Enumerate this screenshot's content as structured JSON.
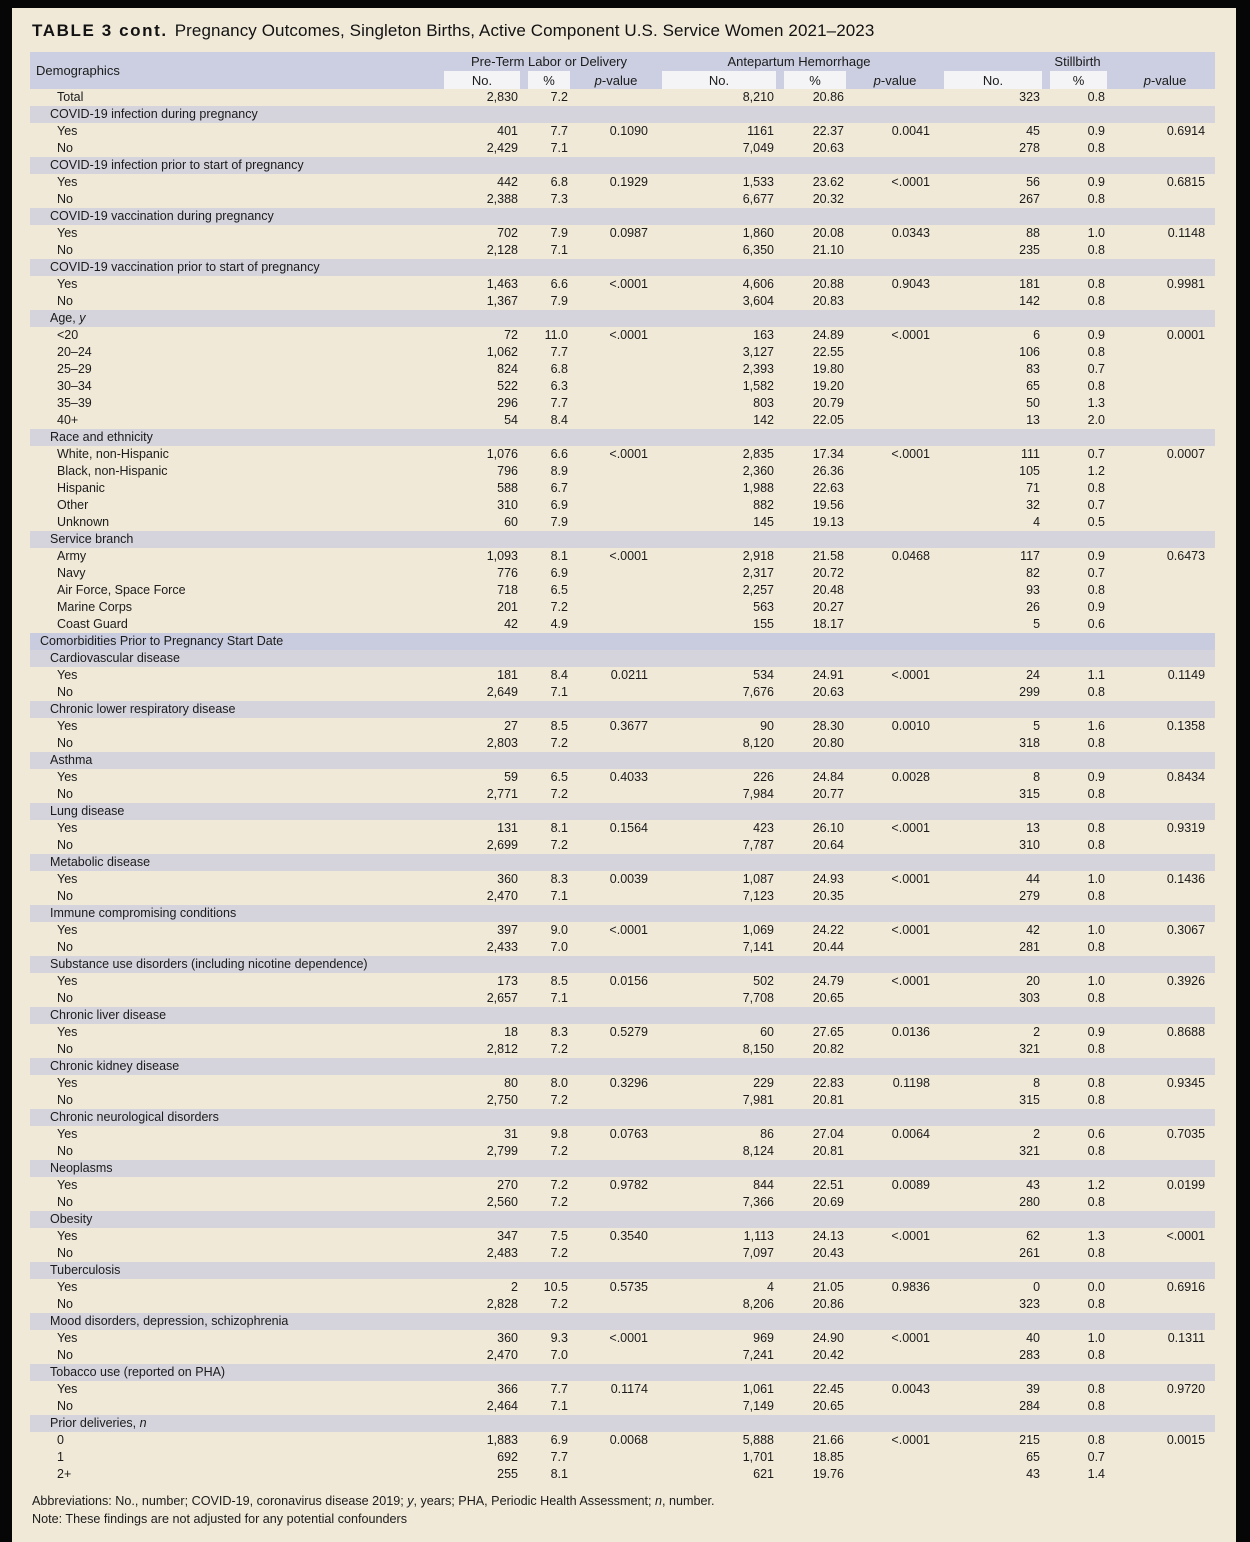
{
  "title": {
    "label": "TABLE 3 cont.",
    "text": "Pregnancy Outcomes, Singleton Births, Active Component U.S. Service Women 2021–2023"
  },
  "colors": {
    "page_background": "#060606",
    "paper_background": "#f0e9d8",
    "header_band": "#cbcfe1",
    "subheader_box": "#f4f3f6",
    "section_band": "#d5d4dc",
    "major_section_band": "#c9ccde",
    "text": "#1b1b1b"
  },
  "table": {
    "demographics_header": "Demographics",
    "groups": [
      {
        "label": "Pre-Term Labor or Delivery"
      },
      {
        "label": "Antepartum Hemorrhage"
      },
      {
        "label": "Stillbirth"
      }
    ],
    "subheaders": {
      "no": "No.",
      "pct": "%",
      "p_italic": "p",
      "p_rest": "-value"
    },
    "rows": [
      {
        "type": "data",
        "label": "Total",
        "cells": [
          "2,830",
          "7.2",
          "",
          "8,210",
          "20.86",
          "",
          "323",
          "0.8",
          ""
        ]
      },
      {
        "type": "section",
        "label": "COVID-19 infection during pregnancy"
      },
      {
        "type": "data",
        "label": "Yes",
        "cells": [
          "401",
          "7.7",
          "0.1090",
          "1161",
          "22.37",
          "0.0041",
          "45",
          "0.9",
          "0.6914"
        ]
      },
      {
        "type": "data",
        "label": "No",
        "cells": [
          "2,429",
          "7.1",
          "",
          "7,049",
          "20.63",
          "",
          "278",
          "0.8",
          ""
        ]
      },
      {
        "type": "section",
        "label": "COVID-19 infection prior to start of pregnancy"
      },
      {
        "type": "data",
        "label": "Yes",
        "cells": [
          "442",
          "6.8",
          "0.1929",
          "1,533",
          "23.62",
          "<.0001",
          "56",
          "0.9",
          "0.6815"
        ]
      },
      {
        "type": "data",
        "label": "No",
        "cells": [
          "2,388",
          "7.3",
          "",
          "6,677",
          "20.32",
          "",
          "267",
          "0.8",
          ""
        ]
      },
      {
        "type": "section",
        "label": "COVID-19 vaccination during pregnancy"
      },
      {
        "type": "data",
        "label": "Yes",
        "cells": [
          "702",
          "7.9",
          "0.0987",
          "1,860",
          "20.08",
          "0.0343",
          "88",
          "1.0",
          "0.1148"
        ]
      },
      {
        "type": "data",
        "label": "No",
        "cells": [
          "2,128",
          "7.1",
          "",
          "6,350",
          "21.10",
          "",
          "235",
          "0.8",
          ""
        ]
      },
      {
        "type": "section",
        "label": "COVID-19 vaccination prior to start of pregnancy"
      },
      {
        "type": "data",
        "label": "Yes",
        "cells": [
          "1,463",
          "6.6",
          "<.0001",
          "4,606",
          "20.88",
          "0.9043",
          "181",
          "0.8",
          "0.9981"
        ]
      },
      {
        "type": "data",
        "label": "No",
        "cells": [
          "1,367",
          "7.9",
          "",
          "3,604",
          "20.83",
          "",
          "142",
          "0.8",
          ""
        ]
      },
      {
        "type": "section",
        "label": "Age, ",
        "label_italic": "y"
      },
      {
        "type": "data",
        "label": "<20",
        "cells": [
          "72",
          "11.0",
          "<.0001",
          "163",
          "24.89",
          "<.0001",
          "6",
          "0.9",
          "0.0001"
        ]
      },
      {
        "type": "data",
        "label": "20–24",
        "cells": [
          "1,062",
          "7.7",
          "",
          "3,127",
          "22.55",
          "",
          "106",
          "0.8",
          ""
        ]
      },
      {
        "type": "data",
        "label": "25–29",
        "cells": [
          "824",
          "6.8",
          "",
          "2,393",
          "19.80",
          "",
          "83",
          "0.7",
          ""
        ]
      },
      {
        "type": "data",
        "label": "30–34",
        "cells": [
          "522",
          "6.3",
          "",
          "1,582",
          "19.20",
          "",
          "65",
          "0.8",
          ""
        ]
      },
      {
        "type": "data",
        "label": "35–39",
        "cells": [
          "296",
          "7.7",
          "",
          "803",
          "20.79",
          "",
          "50",
          "1.3",
          ""
        ]
      },
      {
        "type": "data",
        "label": "40+",
        "cells": [
          "54",
          "8.4",
          "",
          "142",
          "22.05",
          "",
          "13",
          "2.0",
          ""
        ]
      },
      {
        "type": "section",
        "label": "Race and ethnicity"
      },
      {
        "type": "data",
        "label": "White, non-Hispanic",
        "cells": [
          "1,076",
          "6.6",
          "<.0001",
          "2,835",
          "17.34",
          "<.0001",
          "111",
          "0.7",
          "0.0007"
        ]
      },
      {
        "type": "data",
        "label": "Black, non-Hispanic",
        "cells": [
          "796",
          "8.9",
          "",
          "2,360",
          "26.36",
          "",
          "105",
          "1.2",
          ""
        ]
      },
      {
        "type": "data",
        "label": "Hispanic",
        "cells": [
          "588",
          "6.7",
          "",
          "1,988",
          "22.63",
          "",
          "71",
          "0.8",
          ""
        ]
      },
      {
        "type": "data",
        "label": "Other",
        "cells": [
          "310",
          "6.9",
          "",
          "882",
          "19.56",
          "",
          "32",
          "0.7",
          ""
        ]
      },
      {
        "type": "data",
        "label": "Unknown",
        "cells": [
          "60",
          "7.9",
          "",
          "145",
          "19.13",
          "",
          "4",
          "0.5",
          ""
        ]
      },
      {
        "type": "section",
        "label": "Service branch"
      },
      {
        "type": "data",
        "label": "Army",
        "cells": [
          "1,093",
          "8.1",
          "<.0001",
          "2,918",
          "21.58",
          "0.0468",
          "117",
          "0.9",
          "0.6473"
        ]
      },
      {
        "type": "data",
        "label": "Navy",
        "cells": [
          "776",
          "6.9",
          "",
          "2,317",
          "20.72",
          "",
          "82",
          "0.7",
          ""
        ]
      },
      {
        "type": "data",
        "label": "Air Force, Space Force",
        "cells": [
          "718",
          "6.5",
          "",
          "2,257",
          "20.48",
          "",
          "93",
          "0.8",
          ""
        ]
      },
      {
        "type": "data",
        "label": "Marine Corps",
        "cells": [
          "201",
          "7.2",
          "",
          "563",
          "20.27",
          "",
          "26",
          "0.9",
          ""
        ]
      },
      {
        "type": "data",
        "label": "Coast Guard",
        "cells": [
          "42",
          "4.9",
          "",
          "155",
          "18.17",
          "",
          "5",
          "0.6",
          ""
        ]
      },
      {
        "type": "major",
        "label": "Comorbidities Prior to Pregnancy Start Date"
      },
      {
        "type": "section",
        "label": "Cardiovascular disease"
      },
      {
        "type": "data",
        "label": "Yes",
        "cells": [
          "181",
          "8.4",
          "0.0211",
          "534",
          "24.91",
          "<.0001",
          "24",
          "1.1",
          "0.1149"
        ]
      },
      {
        "type": "data",
        "label": "No",
        "cells": [
          "2,649",
          "7.1",
          "",
          "7,676",
          "20.63",
          "",
          "299",
          "0.8",
          ""
        ]
      },
      {
        "type": "section",
        "label": "Chronic lower respiratory disease"
      },
      {
        "type": "data",
        "label": "Yes",
        "cells": [
          "27",
          "8.5",
          "0.3677",
          "90",
          "28.30",
          "0.0010",
          "5",
          "1.6",
          "0.1358"
        ]
      },
      {
        "type": "data",
        "label": "No",
        "cells": [
          "2,803",
          "7.2",
          "",
          "8,120",
          "20.80",
          "",
          "318",
          "0.8",
          ""
        ]
      },
      {
        "type": "section",
        "label": "Asthma"
      },
      {
        "type": "data",
        "label": "Yes",
        "cells": [
          "59",
          "6.5",
          "0.4033",
          "226",
          "24.84",
          "0.0028",
          "8",
          "0.9",
          "0.8434"
        ]
      },
      {
        "type": "data",
        "label": "No",
        "cells": [
          "2,771",
          "7.2",
          "",
          "7,984",
          "20.77",
          "",
          "315",
          "0.8",
          ""
        ]
      },
      {
        "type": "section",
        "label": "Lung disease"
      },
      {
        "type": "data",
        "label": "Yes",
        "cells": [
          "131",
          "8.1",
          "0.1564",
          "423",
          "26.10",
          "<.0001",
          "13",
          "0.8",
          "0.9319"
        ]
      },
      {
        "type": "data",
        "label": "No",
        "cells": [
          "2,699",
          "7.2",
          "",
          "7,787",
          "20.64",
          "",
          "310",
          "0.8",
          ""
        ]
      },
      {
        "type": "section",
        "label": "Metabolic disease"
      },
      {
        "type": "data",
        "label": "Yes",
        "cells": [
          "360",
          "8.3",
          "0.0039",
          "1,087",
          "24.93",
          "<.0001",
          "44",
          "1.0",
          "0.1436"
        ]
      },
      {
        "type": "data",
        "label": "No",
        "cells": [
          "2,470",
          "7.1",
          "",
          "7,123",
          "20.35",
          "",
          "279",
          "0.8",
          ""
        ]
      },
      {
        "type": "section",
        "label": "Immune compromising conditions"
      },
      {
        "type": "data",
        "label": "Yes",
        "cells": [
          "397",
          "9.0",
          "<.0001",
          "1,069",
          "24.22",
          "<.0001",
          "42",
          "1.0",
          "0.3067"
        ]
      },
      {
        "type": "data",
        "label": "No",
        "cells": [
          "2,433",
          "7.0",
          "",
          "7,141",
          "20.44",
          "",
          "281",
          "0.8",
          ""
        ]
      },
      {
        "type": "section",
        "label": "Substance use disorders (including nicotine dependence)"
      },
      {
        "type": "data",
        "label": "Yes",
        "cells": [
          "173",
          "8.5",
          "0.0156",
          "502",
          "24.79",
          "<.0001",
          "20",
          "1.0",
          "0.3926"
        ]
      },
      {
        "type": "data",
        "label": "No",
        "cells": [
          "2,657",
          "7.1",
          "",
          "7,708",
          "20.65",
          "",
          "303",
          "0.8",
          ""
        ]
      },
      {
        "type": "section",
        "label": "Chronic liver disease"
      },
      {
        "type": "data",
        "label": "Yes",
        "cells": [
          "18",
          "8.3",
          "0.5279",
          "60",
          "27.65",
          "0.0136",
          "2",
          "0.9",
          "0.8688"
        ]
      },
      {
        "type": "data",
        "label": "No",
        "cells": [
          "2,812",
          "7.2",
          "",
          "8,150",
          "20.82",
          "",
          "321",
          "0.8",
          ""
        ]
      },
      {
        "type": "section",
        "label": "Chronic kidney disease"
      },
      {
        "type": "data",
        "label": "Yes",
        "cells": [
          "80",
          "8.0",
          "0.3296",
          "229",
          "22.83",
          "0.1198",
          "8",
          "0.8",
          "0.9345"
        ]
      },
      {
        "type": "data",
        "label": "No",
        "cells": [
          "2,750",
          "7.2",
          "",
          "7,981",
          "20.81",
          "",
          "315",
          "0.8",
          ""
        ]
      },
      {
        "type": "section",
        "label": "Chronic neurological disorders"
      },
      {
        "type": "data",
        "label": "Yes",
        "cells": [
          "31",
          "9.8",
          "0.0763",
          "86",
          "27.04",
          "0.0064",
          "2",
          "0.6",
          "0.7035"
        ]
      },
      {
        "type": "data",
        "label": "No",
        "cells": [
          "2,799",
          "7.2",
          "",
          "8,124",
          "20.81",
          "",
          "321",
          "0.8",
          ""
        ]
      },
      {
        "type": "section",
        "label": "Neoplasms"
      },
      {
        "type": "data",
        "label": "Yes",
        "cells": [
          "270",
          "7.2",
          "0.9782",
          "844",
          "22.51",
          "0.0089",
          "43",
          "1.2",
          "0.0199"
        ]
      },
      {
        "type": "data",
        "label": "No",
        "cells": [
          "2,560",
          "7.2",
          "",
          "7,366",
          "20.69",
          "",
          "280",
          "0.8",
          ""
        ]
      },
      {
        "type": "section",
        "label": "Obesity"
      },
      {
        "type": "data",
        "label": "Yes",
        "cells": [
          "347",
          "7.5",
          "0.3540",
          "1,113",
          "24.13",
          "<.0001",
          "62",
          "1.3",
          "<.0001"
        ]
      },
      {
        "type": "data",
        "label": "No",
        "cells": [
          "2,483",
          "7.2",
          "",
          "7,097",
          "20.43",
          "",
          "261",
          "0.8",
          ""
        ]
      },
      {
        "type": "section",
        "label": "Tuberculosis"
      },
      {
        "type": "data",
        "label": "Yes",
        "cells": [
          "2",
          "10.5",
          "0.5735",
          "4",
          "21.05",
          "0.9836",
          "0",
          "0.0",
          "0.6916"
        ]
      },
      {
        "type": "data",
        "label": "No",
        "cells": [
          "2,828",
          "7.2",
          "",
          "8,206",
          "20.86",
          "",
          "323",
          "0.8",
          ""
        ]
      },
      {
        "type": "section",
        "label": "Mood disorders, depression, schizophrenia"
      },
      {
        "type": "data",
        "label": "Yes",
        "cells": [
          "360",
          "9.3",
          "<.0001",
          "969",
          "24.90",
          "<.0001",
          "40",
          "1.0",
          "0.1311"
        ]
      },
      {
        "type": "data",
        "label": "No",
        "cells": [
          "2,470",
          "7.0",
          "",
          "7,241",
          "20.42",
          "",
          "283",
          "0.8",
          ""
        ]
      },
      {
        "type": "section",
        "label": "Tobacco use (reported on PHA)"
      },
      {
        "type": "data",
        "label": "Yes",
        "cells": [
          "366",
          "7.7",
          "0.1174",
          "1,061",
          "22.45",
          "0.0043",
          "39",
          "0.8",
          "0.9720"
        ]
      },
      {
        "type": "data",
        "label": "No",
        "cells": [
          "2,464",
          "7.1",
          "",
          "7,149",
          "20.65",
          "",
          "284",
          "0.8",
          ""
        ]
      },
      {
        "type": "section",
        "label": "Prior deliveries, ",
        "label_italic": "n"
      },
      {
        "type": "data",
        "label": "0",
        "cells": [
          "1,883",
          "6.9",
          "0.0068",
          "5,888",
          "21.66",
          "<.0001",
          "215",
          "0.8",
          "0.0015"
        ]
      },
      {
        "type": "data",
        "label": "1",
        "cells": [
          "692",
          "7.7",
          "",
          "1,701",
          "18.85",
          "",
          "65",
          "0.7",
          ""
        ]
      },
      {
        "type": "data",
        "label": "2+",
        "cells": [
          "255",
          "8.1",
          "",
          "621",
          "19.76",
          "",
          "43",
          "1.4",
          ""
        ]
      }
    ]
  },
  "footnotes": {
    "abbreviations_parts": [
      {
        "t": "Abbreviations: No., number; COVID-19, coronavirus disease 2019; "
      },
      {
        "t": "y",
        "i": true
      },
      {
        "t": ", years; PHA, Periodic Health Assessment; "
      },
      {
        "t": "n",
        "i": true
      },
      {
        "t": ", number."
      }
    ],
    "note": "Note: These findings are not adjusted for any potential confounders"
  }
}
